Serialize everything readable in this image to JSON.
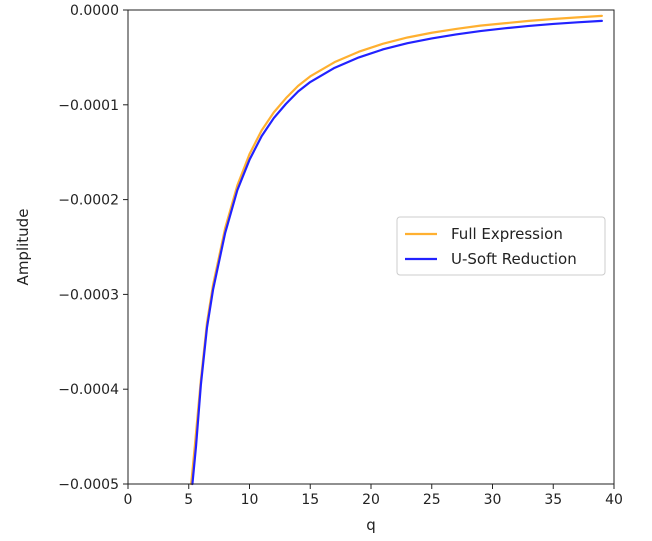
{
  "chart_data": {
    "type": "line",
    "title": "",
    "xlabel": "q",
    "ylabel": "Amplitude",
    "xlim": [
      0,
      40
    ],
    "ylim": [
      -0.0005,
      0.0
    ],
    "xticks": [
      0,
      5,
      10,
      15,
      20,
      25,
      30,
      35,
      40
    ],
    "xtick_labels": [
      "0",
      "5",
      "10",
      "15",
      "20",
      "25",
      "30",
      "35",
      "40"
    ],
    "yticks": [
      0.0,
      -0.0001,
      -0.0002,
      -0.0003,
      -0.0004,
      -0.0005
    ],
    "ytick_labels": [
      "0.0000",
      "−0.0001",
      "−0.0002",
      "−0.0003",
      "−0.0004",
      "−0.0005"
    ],
    "grid": false,
    "legend_position": "center-right",
    "series": [
      {
        "name": "Full Expression",
        "color": "#ffb030",
        "x": [
          5.2,
          5.5,
          6,
          6.5,
          7,
          8,
          9,
          10,
          11,
          12,
          13,
          14,
          15,
          17,
          19,
          21,
          23,
          25,
          27,
          29,
          31,
          33,
          35,
          37,
          39
        ],
        "y": [
          -0.0005,
          -0.00046,
          -0.00039,
          -0.00033,
          -0.00029,
          -0.00023,
          -0.000185,
          -0.000152,
          -0.000127,
          -0.000108,
          -9.3e-05,
          -8e-05,
          -7e-05,
          -5.5e-05,
          -4.4e-05,
          -3.55e-05,
          -2.9e-05,
          -2.4e-05,
          -2e-05,
          -1.65e-05,
          -1.4e-05,
          -1.15e-05,
          -9.5e-06,
          -7.8e-06,
          -6.2e-06
        ]
      },
      {
        "name": "U-Soft Reduction",
        "color": "#2222ff",
        "x": [
          5.3,
          5.6,
          6,
          6.5,
          7,
          8,
          9,
          10,
          11,
          12,
          13,
          14,
          15,
          17,
          19,
          21,
          23,
          25,
          27,
          29,
          31,
          33,
          35,
          37,
          39
        ],
        "y": [
          -0.0005,
          -0.00046,
          -0.000395,
          -0.000335,
          -0.000295,
          -0.000235,
          -0.00019,
          -0.000158,
          -0.000133,
          -0.000114,
          -9.9e-05,
          -8.6e-05,
          -7.6e-05,
          -6.1e-05,
          -5e-05,
          -4.15e-05,
          -3.5e-05,
          -3e-05,
          -2.58e-05,
          -2.22e-05,
          -1.93e-05,
          -1.68e-05,
          -1.47e-05,
          -1.3e-05,
          -1.15e-05
        ]
      }
    ]
  }
}
